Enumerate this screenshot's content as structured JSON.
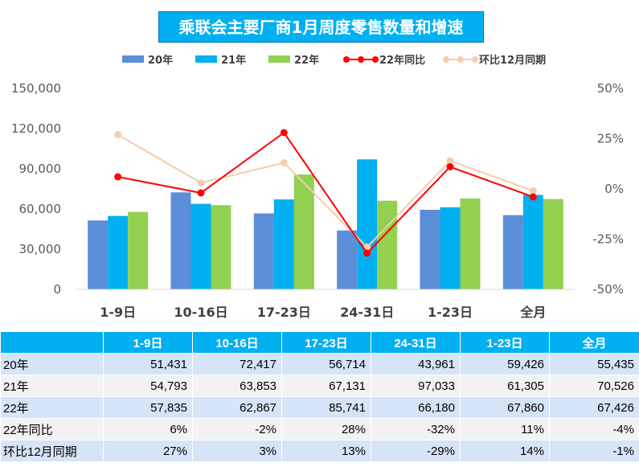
{
  "chart_data": {
    "type": "bar",
    "title": "乘联会主要厂商1月周度零售数量和增速",
    "categories": [
      "1-9日",
      "10-16日",
      "17-23日",
      "24-31日",
      "1-23日",
      "全月"
    ],
    "series": [
      {
        "name": "20年",
        "type": "bar",
        "color": "#5B8ED8",
        "values": [
          51431,
          72417,
          56714,
          43961,
          59426,
          55435
        ]
      },
      {
        "name": "21年",
        "type": "bar",
        "color": "#00B0F0",
        "values": [
          54793,
          63853,
          67131,
          97033,
          61305,
          70526
        ]
      },
      {
        "name": "22年",
        "type": "bar",
        "color": "#92D050",
        "values": [
          57835,
          62867,
          85741,
          66180,
          67860,
          67426
        ]
      },
      {
        "name": "22年同比",
        "type": "line",
        "axis": "right",
        "color": "#FF0000",
        "values": [
          6,
          -2,
          28,
          -32,
          11,
          -4
        ]
      },
      {
        "name": "环比12月同期",
        "type": "line",
        "axis": "right",
        "color": "#F8CBAD",
        "values": [
          27,
          3,
          13,
          -29,
          14,
          -1
        ]
      }
    ],
    "y_left": {
      "min": 0,
      "max": 150000,
      "ticks": [
        "0",
        "30,000",
        "60,000",
        "90,000",
        "120,000",
        "150,000"
      ]
    },
    "y_right": {
      "min": -50,
      "max": 50,
      "ticks": [
        "-50%",
        "-25%",
        "0%",
        "25%",
        "50%"
      ]
    },
    "grid": false,
    "legend_position": "top"
  },
  "table": {
    "headers": [
      "",
      "1-9日",
      "10-16日",
      "17-23日",
      "24-31日",
      "1-23日",
      "全月"
    ],
    "rows": [
      [
        "20年",
        "51,431",
        "72,417",
        "56,714",
        "43,961",
        "59,426",
        "55,435"
      ],
      [
        "21年",
        "54,793",
        "63,853",
        "67,131",
        "97,033",
        "61,305",
        "70,526"
      ],
      [
        "22年",
        "57,835",
        "62,867",
        "85,741",
        "66,180",
        "67,860",
        "67,426"
      ],
      [
        "22年同比",
        "6%",
        "-2%",
        "28%",
        "-32%",
        "11%",
        "-4%"
      ],
      [
        "环比12月同期",
        "27%",
        "3%",
        "13%",
        "-29%",
        "14%",
        "-1%"
      ]
    ]
  }
}
